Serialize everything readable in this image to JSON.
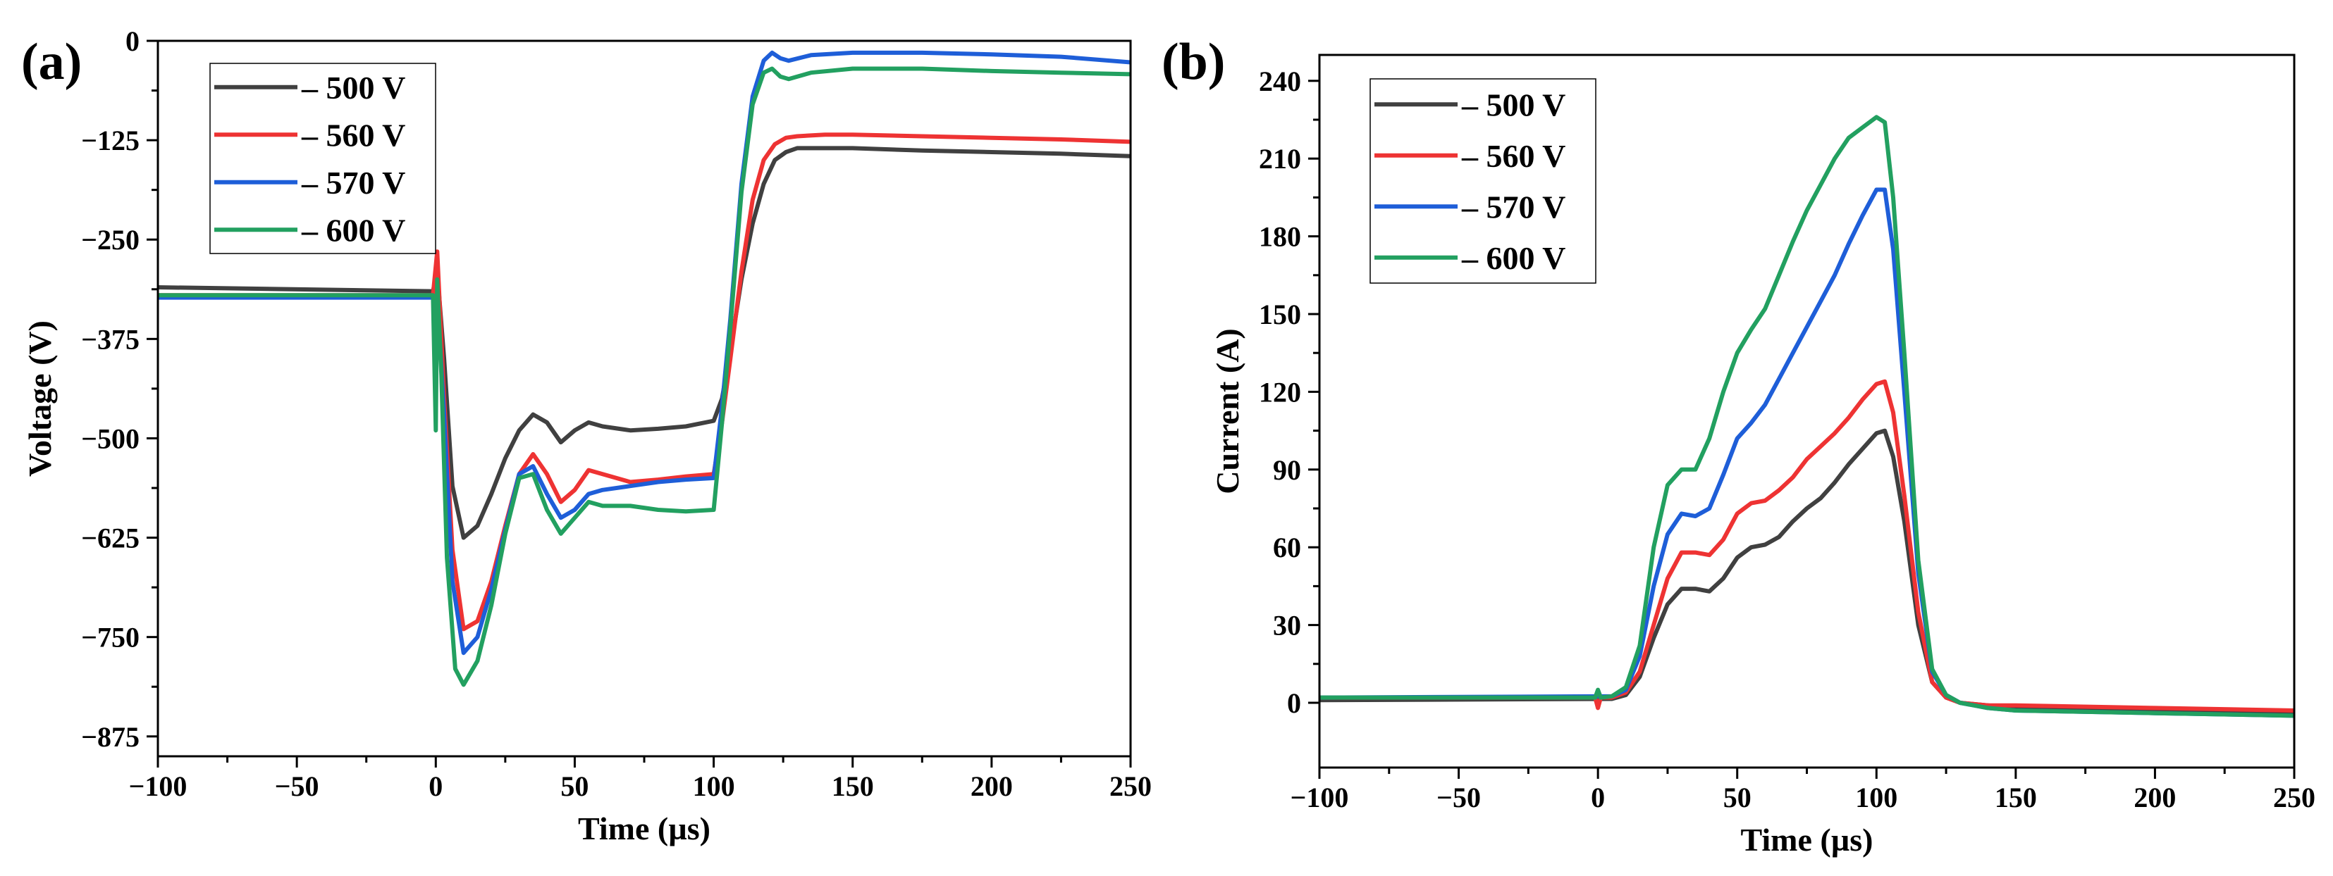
{
  "colors": {
    "s500": "#404040",
    "s560": "#ee3333",
    "s570": "#1e5ed8",
    "s600": "#22a060"
  },
  "chart_data": [
    {
      "type": "line",
      "panel_label": "(a)",
      "xlabel": "Time (µs)",
      "ylabel": "Voltage (V)",
      "xlim": [
        -100,
        250
      ],
      "ylim": [
        -900,
        0
      ],
      "xticks": [
        -100,
        -50,
        0,
        50,
        100,
        150,
        200,
        250
      ],
      "yticks": [
        -875,
        -750,
        -625,
        -500,
        -375,
        -250,
        -125,
        0
      ],
      "xtick_labels": [
        "−100",
        "−50",
        "0",
        "50",
        "100",
        "150",
        "200",
        "250"
      ],
      "ytick_labels": [
        "−875",
        "−750",
        "−625",
        "−500",
        "−375",
        "−250",
        "−125",
        "0"
      ],
      "legend": "top-left",
      "series": [
        {
          "name": "– 500 V",
          "color": "s500",
          "x": [
            -100,
            -1,
            0.5,
            3,
            6,
            10,
            15,
            20,
            25,
            30,
            35,
            40,
            45,
            50,
            55,
            60,
            70,
            80,
            90,
            100,
            103,
            106,
            110,
            114,
            118,
            122,
            126,
            130,
            140,
            150,
            175,
            200,
            225,
            250
          ],
          "y": [
            -310,
            -315,
            -290,
            -400,
            -560,
            -625,
            -610,
            -570,
            -525,
            -490,
            -470,
            -480,
            -505,
            -490,
            -480,
            -485,
            -490,
            -488,
            -485,
            -478,
            -450,
            -390,
            -300,
            -230,
            -180,
            -150,
            -140,
            -135,
            -135,
            -135,
            -138,
            -140,
            -142,
            -145
          ]
        },
        {
          "name": "– 560 V",
          "color": "s560",
          "x": [
            -100,
            -1,
            0.5,
            3,
            6,
            10,
            15,
            20,
            25,
            30,
            35,
            40,
            45,
            50,
            55,
            60,
            70,
            80,
            90,
            100,
            103,
            106,
            110,
            114,
            118,
            122,
            126,
            130,
            140,
            150,
            175,
            200,
            225,
            250
          ],
          "y": [
            -320,
            -320,
            -265,
            -450,
            -640,
            -740,
            -730,
            -680,
            -610,
            -545,
            -520,
            -545,
            -580,
            -565,
            -540,
            -545,
            -555,
            -552,
            -548,
            -545,
            -480,
            -400,
            -290,
            -200,
            -150,
            -130,
            -122,
            -120,
            -118,
            -118,
            -120,
            -122,
            -124,
            -127
          ]
        },
        {
          "name": "– 570 V",
          "color": "s570",
          "x": [
            -100,
            -1,
            0.5,
            3,
            6,
            10,
            15,
            20,
            25,
            30,
            35,
            40,
            45,
            50,
            55,
            60,
            70,
            80,
            90,
            100,
            103,
            106,
            110,
            114,
            118,
            121,
            124,
            127,
            135,
            150,
            175,
            200,
            225,
            250
          ],
          "y": [
            -323,
            -323,
            -320,
            -470,
            -680,
            -770,
            -750,
            -690,
            -615,
            -545,
            -535,
            -570,
            -600,
            -590,
            -570,
            -565,
            -560,
            -555,
            -552,
            -550,
            -460,
            -350,
            -180,
            -70,
            -25,
            -15,
            -22,
            -25,
            -18,
            -15,
            -15,
            -17,
            -20,
            -27
          ]
        },
        {
          "name": "– 600 V",
          "color": "s600",
          "x": [
            -100,
            -1,
            0,
            0.5,
            2,
            4,
            7,
            10,
            15,
            20,
            25,
            30,
            35,
            40,
            45,
            50,
            55,
            60,
            70,
            80,
            90,
            100,
            103,
            106,
            110,
            114,
            118,
            121,
            124,
            127,
            135,
            150,
            175,
            200,
            225,
            250
          ],
          "y": [
            -320,
            -320,
            -490,
            -300,
            -420,
            -650,
            -790,
            -810,
            -780,
            -710,
            -620,
            -550,
            -545,
            -590,
            -620,
            -600,
            -580,
            -585,
            -585,
            -590,
            -592,
            -590,
            -480,
            -360,
            -190,
            -80,
            -40,
            -35,
            -45,
            -48,
            -40,
            -35,
            -35,
            -38,
            -40,
            -42
          ]
        }
      ]
    },
    {
      "type": "line",
      "panel_label": "(b)",
      "xlabel": "Time (µs)",
      "ylabel": "Current (A)",
      "xlim": [
        -100,
        250
      ],
      "ylim": [
        -25,
        250
      ],
      "xticks": [
        -100,
        -50,
        0,
        50,
        100,
        150,
        200,
        250
      ],
      "yticks": [
        0,
        30,
        60,
        90,
        120,
        150,
        180,
        210,
        240
      ],
      "xtick_labels": [
        "−100",
        "−50",
        "0",
        "50",
        "100",
        "150",
        "200",
        "250"
      ],
      "ytick_labels": [
        "0",
        "30",
        "60",
        "90",
        "120",
        "150",
        "180",
        "210",
        "240"
      ],
      "legend": "top-left",
      "series": [
        {
          "name": "– 500 V",
          "color": "s500",
          "x": [
            -100,
            5,
            10,
            15,
            20,
            25,
            30,
            35,
            40,
            45,
            50,
            55,
            60,
            65,
            70,
            75,
            80,
            85,
            90,
            95,
            100,
            103,
            106,
            110,
            115,
            120,
            125,
            130,
            140,
            150,
            200,
            250
          ],
          "y": [
            1,
            1.5,
            3,
            10,
            25,
            38,
            44,
            44,
            43,
            48,
            56,
            60,
            61,
            64,
            70,
            75,
            79,
            85,
            92,
            98,
            104,
            105,
            95,
            70,
            30,
            8,
            2,
            0,
            -1,
            -2,
            -3,
            -4
          ]
        },
        {
          "name": "– 560 V",
          "color": "s560",
          "x": [
            -100,
            -1,
            0,
            1,
            3,
            5,
            10,
            15,
            20,
            25,
            30,
            35,
            40,
            45,
            50,
            55,
            60,
            65,
            70,
            75,
            80,
            85,
            90,
            95,
            100,
            103,
            106,
            110,
            115,
            120,
            125,
            130,
            140,
            150,
            200,
            250
          ],
          "y": [
            2,
            2,
            -2,
            2,
            2,
            2,
            4,
            12,
            30,
            48,
            58,
            58,
            57,
            63,
            73,
            77,
            78,
            82,
            87,
            94,
            99,
            104,
            110,
            117,
            123,
            124,
            112,
            80,
            35,
            8,
            2,
            0,
            -1,
            -1,
            -2,
            -3
          ]
        },
        {
          "name": "– 570 V",
          "color": "s570",
          "x": [
            -100,
            5,
            10,
            15,
            20,
            25,
            30,
            35,
            40,
            45,
            50,
            55,
            60,
            65,
            70,
            75,
            80,
            85,
            90,
            95,
            100,
            103,
            106,
            110,
            115,
            120,
            125,
            130,
            140,
            150,
            200,
            250
          ],
          "y": [
            2,
            2.5,
            5,
            18,
            45,
            65,
            73,
            72,
            75,
            88,
            102,
            108,
            115,
            125,
            135,
            145,
            155,
            165,
            177,
            188,
            198,
            198,
            175,
            120,
            50,
            12,
            3,
            0,
            -2,
            -3,
            -4,
            -5
          ]
        },
        {
          "name": "– 600 V",
          "color": "s600",
          "x": [
            -100,
            -1,
            0,
            1,
            5,
            10,
            15,
            20,
            25,
            30,
            35,
            40,
            45,
            50,
            55,
            60,
            65,
            70,
            75,
            80,
            85,
            90,
            95,
            100,
            103,
            106,
            110,
            115,
            120,
            125,
            130,
            140,
            150,
            200,
            250
          ],
          "y": [
            2,
            2,
            5,
            2,
            2.5,
            6,
            22,
            60,
            84,
            90,
            90,
            102,
            120,
            135,
            144,
            152,
            165,
            178,
            190,
            200,
            210,
            218,
            222,
            226,
            224,
            195,
            135,
            55,
            13,
            3,
            0,
            -2,
            -3,
            -4,
            -5
          ]
        }
      ]
    }
  ]
}
